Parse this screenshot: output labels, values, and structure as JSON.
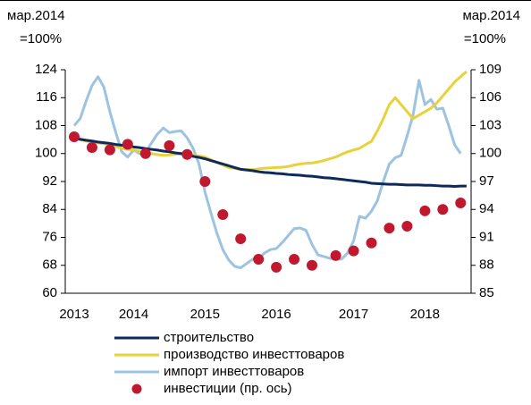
{
  "chart_data": {
    "type": "line",
    "ylabel": [
      "мар.2014",
      "=100%"
    ],
    "y2label": [
      "мар.2014",
      "=100%"
    ],
    "categories": [
      "2013",
      null,
      null,
      null,
      null,
      null,
      null,
      null,
      null,
      null,
      "2014",
      null,
      null,
      null,
      null,
      null,
      null,
      null,
      null,
      null,
      null,
      null,
      "2015",
      null,
      null,
      null,
      null,
      null,
      null,
      null,
      null,
      null,
      null,
      null,
      "2016",
      null,
      null,
      null,
      null,
      null,
      null,
      null,
      null,
      null,
      null,
      null,
      null,
      "2017",
      null,
      null,
      null,
      null,
      null,
      null,
      null,
      null,
      null,
      null,
      null,
      "2018",
      null,
      null,
      null,
      null,
      null,
      null,
      null
    ],
    "ylim": [
      60,
      124
    ],
    "yticks": [
      60,
      68,
      76,
      84,
      92,
      100,
      108,
      116,
      124
    ],
    "y2lim": [
      85,
      109
    ],
    "y2ticks": [
      85,
      88,
      91,
      94,
      97,
      100,
      103,
      106,
      109
    ],
    "series": [
      {
        "name": "строительство",
        "color": "#0d2a5a",
        "marker": "line",
        "values": [
          104.3,
          104.1,
          103.8,
          103.6,
          103.3,
          103.1,
          102.9,
          102.6,
          102.4,
          102.2,
          101.9,
          101.7,
          101.4,
          101.2,
          101.0,
          100.7,
          100.5,
          100.2,
          100.0,
          99.6,
          99.2,
          98.9,
          98.5,
          98.0,
          97.5,
          97.0,
          96.5,
          96.0,
          95.5,
          95.3,
          95.1,
          94.8,
          94.6,
          94.5,
          94.3,
          94.2,
          94.0,
          93.9,
          93.8,
          93.6,
          93.5,
          93.3,
          93.1,
          93.0,
          92.8,
          92.6,
          92.4,
          92.2,
          92.0,
          91.8,
          91.5,
          91.4,
          91.3,
          91.2,
          91.2,
          91.1,
          91.0,
          91.0,
          91.0,
          90.9,
          90.9,
          90.8,
          90.7,
          90.7,
          90.6,
          90.7,
          90.7
        ]
      },
      {
        "name": "производство инвесттоваров",
        "color": "#e8d23a",
        "marker": "line",
        "values": [
          104.5,
          104.0,
          103.6,
          103.2,
          103.0,
          102.8,
          102.5,
          102.0,
          101.5,
          101.2,
          101.0,
          100.6,
          100.3,
          100.0,
          99.7,
          99.5,
          99.6,
          99.8,
          99.9,
          99.8,
          99.6,
          99.3,
          99.0,
          98.2,
          97.5,
          96.7,
          96.0,
          95.7,
          95.5,
          95.4,
          95.4,
          95.6,
          95.8,
          95.9,
          96.0,
          96.1,
          96.3,
          96.7,
          97.0,
          97.2,
          97.3,
          97.6,
          98.0,
          98.5,
          99.0,
          99.8,
          100.5,
          101.0,
          101.5,
          102.5,
          103.5,
          106.5,
          110.0,
          114.0,
          116.0,
          114.0,
          112.0,
          110.0,
          111.0,
          112.0,
          113.0,
          114.5,
          116.5,
          118.5,
          120.5,
          122.0,
          123.5
        ]
      },
      {
        "name": "импорт инвесттоваров",
        "color": "#9dc3e0",
        "marker": "line",
        "values": [
          108,
          110,
          115,
          119.5,
          122,
          119,
          112,
          106,
          100.5,
          99,
          101,
          100,
          100.5,
          103,
          105.6,
          107.3,
          106,
          106.3,
          106.5,
          104.5,
          101.5,
          97,
          89,
          83,
          77.2,
          72.5,
          69.5,
          67.7,
          67.3,
          68.5,
          69.7,
          70,
          71.5,
          72.5,
          72.8,
          74.5,
          76.5,
          78.5,
          78.7,
          78,
          74,
          71,
          70.5,
          70,
          69.7,
          69.8,
          71.5,
          75,
          82,
          81.5,
          83.5,
          86.5,
          92,
          97,
          98.8,
          99.5,
          105,
          111,
          121,
          114,
          115.5,
          112.7,
          113,
          108,
          102.5,
          100,
          null
        ]
      },
      {
        "name": "инвестиции (пр. ось)",
        "color": "#c0182f",
        "marker": "dot",
        "axis": "y2",
        "values": [
          101.8,
          null,
          null,
          100.65,
          null,
          null,
          100.4,
          null,
          null,
          101.0,
          null,
          null,
          100.0,
          null,
          null,
          null,
          100.85,
          null,
          null,
          99.9,
          null,
          null,
          97.0,
          null,
          null,
          93.45,
          null,
          null,
          90.85,
          null,
          null,
          88.65,
          null,
          null,
          87.8,
          null,
          null,
          88.65,
          null,
          null,
          88.0,
          null,
          null,
          null,
          89.05,
          null,
          null,
          89.55,
          null,
          null,
          90.4,
          null,
          null,
          92.0,
          null,
          null,
          92.2,
          null,
          null,
          93.85,
          null,
          null,
          94.0,
          null,
          null,
          94.7,
          null
        ]
      }
    ]
  }
}
